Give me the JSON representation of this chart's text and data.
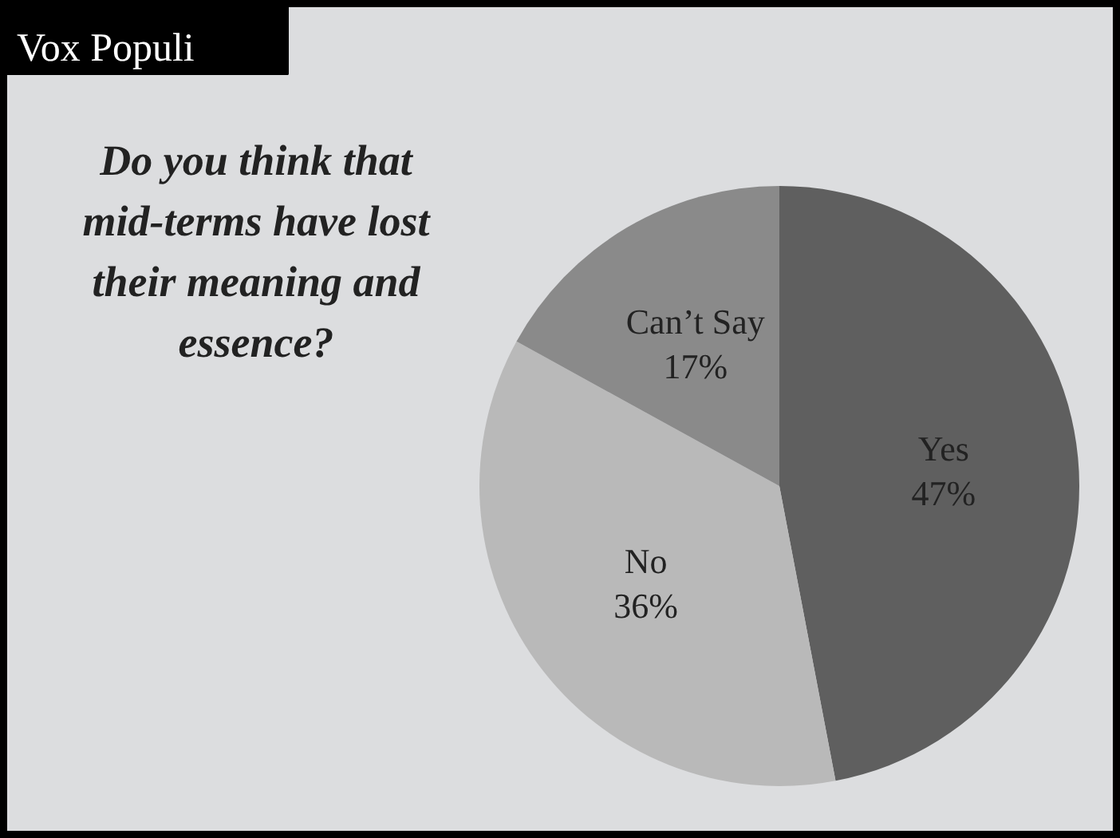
{
  "chart_data": {
    "type": "pie",
    "title": "Vox Populi",
    "subtitle": "Do you think that mid-terms have lost their meaning and essence?",
    "categories": [
      "Yes",
      "No",
      "Can’t Say"
    ],
    "values": [
      47,
      36,
      17
    ],
    "colors": [
      "#5f5f5f",
      "#b9b9b9",
      "#8a8a8a"
    ],
    "value_labels": [
      "47%",
      "36%",
      "17%"
    ]
  }
}
